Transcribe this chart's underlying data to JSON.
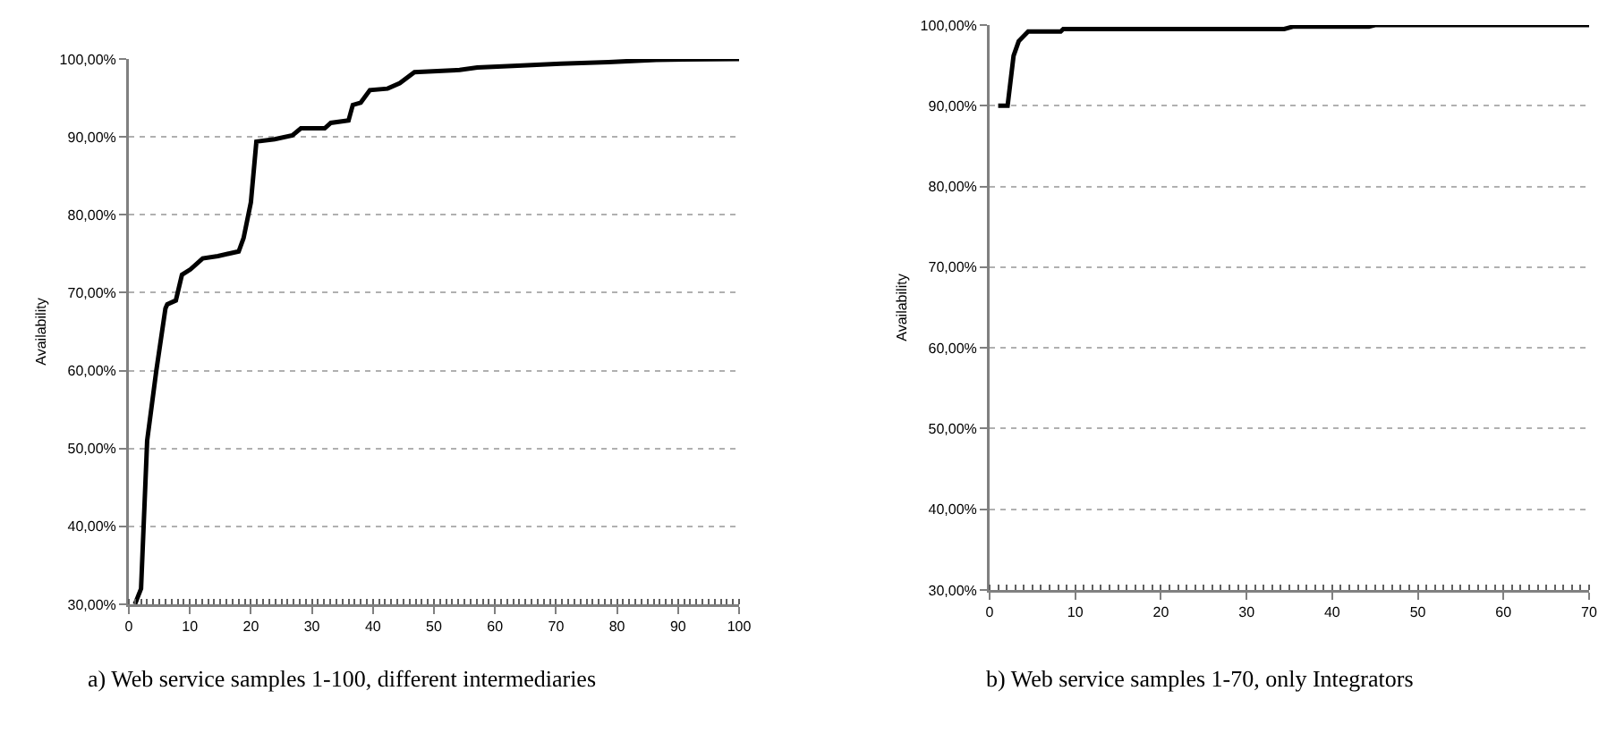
{
  "chart_data": [
    {
      "type": "line",
      "ylabel": "Availability",
      "annotations": [
        "a) Web service samples 1-100, different intermediaries"
      ],
      "x": [
        1,
        2,
        3,
        4.5,
        6,
        6.3,
        7.7,
        8.7,
        10.1,
        12.1,
        14.6,
        18,
        18.8,
        20,
        20.9,
        23.9,
        26.8,
        28.2,
        32.1,
        33.1,
        36,
        36.7,
        38,
        39.5,
        42.4,
        44.4,
        46.8,
        54.2,
        57.1,
        62.9,
        70.8,
        78.6,
        86.4,
        100
      ],
      "series": [
        {
          "color": "#000000",
          "values": [
            30,
            32,
            51,
            60,
            68,
            68.5,
            69,
            72.3,
            73,
            74.4,
            74.7,
            75.3,
            77,
            81.6,
            89.4,
            89.7,
            90.2,
            91.1,
            91.1,
            91.8,
            92.1,
            94.1,
            94.4,
            96,
            96.2,
            96.9,
            98.3,
            98.6,
            98.9,
            99.1,
            99.4,
            99.6,
            99.9,
            100
          ]
        }
      ],
      "xlim": [
        0,
        100
      ],
      "xticks": [
        0,
        10,
        20,
        30,
        40,
        50,
        60,
        70,
        80,
        90,
        100
      ],
      "ylim": [
        30,
        100
      ],
      "yticks": [
        {
          "value": 30,
          "label": "30,00%"
        },
        {
          "value": 40,
          "label": "40,00%"
        },
        {
          "value": 50,
          "label": "50,00%"
        },
        {
          "value": 60,
          "label": "60,00%"
        },
        {
          "value": 70,
          "label": "70,00%"
        },
        {
          "value": 80,
          "label": "80,00%"
        },
        {
          "value": 90,
          "label": "90,00%"
        },
        {
          "value": 100,
          "label": "100,00%"
        }
      ],
      "grid": "y",
      "marker": "none",
      "line_style": "solid"
    },
    {
      "type": "line",
      "ylabel": "Availability",
      "annotations": [
        "b) Web service samples 1-70, only Integrators"
      ],
      "x": [
        1,
        2.1,
        2.8,
        3.4,
        4.5,
        8.3,
        8.6,
        34.4,
        35.4,
        44.3,
        45,
        70
      ],
      "series": [
        {
          "color": "#000000",
          "values": [
            90,
            90,
            96.2,
            98,
            99.2,
            99.2,
            99.5,
            99.5,
            99.8,
            99.8,
            100,
            100
          ]
        }
      ],
      "xlim": [
        0,
        70
      ],
      "xticks": [
        0,
        10,
        20,
        30,
        40,
        50,
        60,
        70
      ],
      "ylim": [
        30,
        100
      ],
      "yticks": [
        {
          "value": 30,
          "label": "30,00%"
        },
        {
          "value": 40,
          "label": "40,00%"
        },
        {
          "value": 50,
          "label": "50,00%"
        },
        {
          "value": 60,
          "label": "60,00%"
        },
        {
          "value": 70,
          "label": "70,00%"
        },
        {
          "value": 80,
          "label": "80,00%"
        },
        {
          "value": 90,
          "label": "90,00%"
        },
        {
          "value": 100,
          "label": "100,00%"
        }
      ],
      "grid": "y",
      "marker": "none",
      "line_style": "solid"
    }
  ]
}
